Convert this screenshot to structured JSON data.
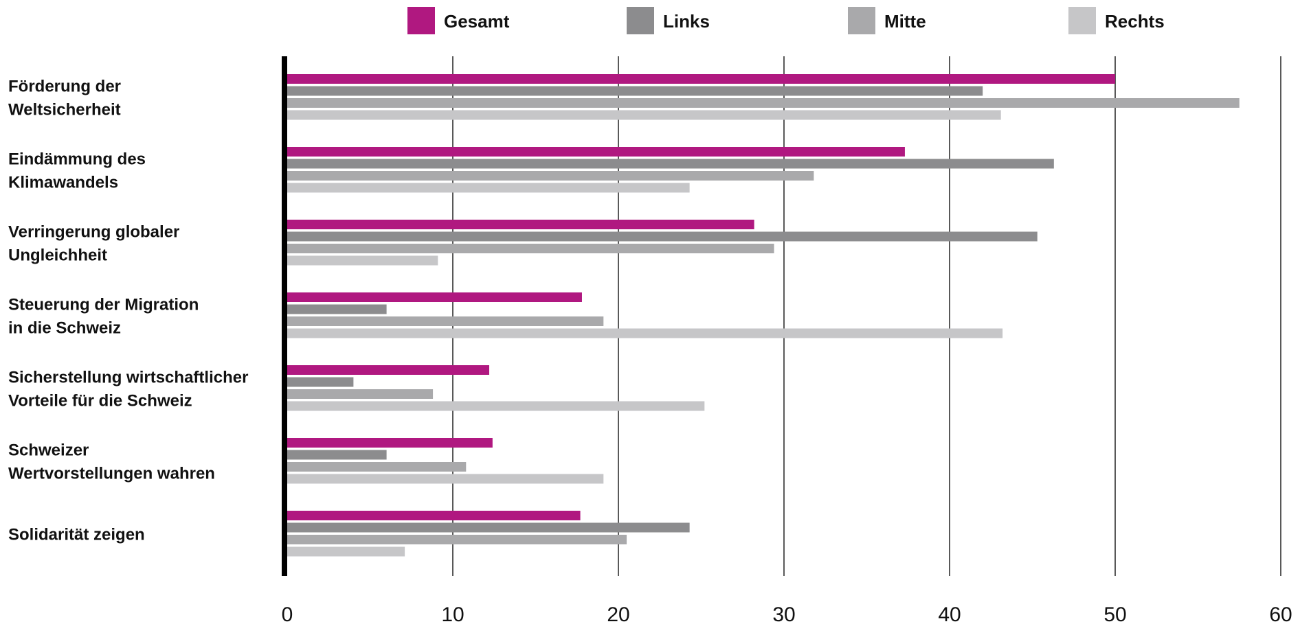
{
  "chart_data": {
    "type": "bar",
    "orientation": "horizontal",
    "categories": [
      [
        "Förderung der",
        "Weltsicherheit"
      ],
      [
        "Eindämmung des",
        "Klimawandels"
      ],
      [
        "Verringerung globaler",
        "Ungleichheit"
      ],
      [
        "Steuerung der Migration",
        "in die Schweiz"
      ],
      [
        "Sicherstellung wirtschaftlicher",
        "Vorteile für die Schweiz"
      ],
      [
        "Schweizer",
        "Wertvorstellungen wahren"
      ],
      [
        "Solidarität zeigen"
      ]
    ],
    "series": [
      {
        "name": "Gesamt",
        "color": "#b01880",
        "values": [
          50.0,
          37.3,
          28.2,
          17.8,
          12.2,
          12.4,
          17.7
        ]
      },
      {
        "name": "Links",
        "color": "#8c8c8e",
        "values": [
          42.0,
          46.3,
          45.3,
          6.0,
          4.0,
          6.0,
          24.3
        ]
      },
      {
        "name": "Mitte",
        "color": "#a9a9ab",
        "values": [
          57.5,
          31.8,
          29.4,
          19.1,
          8.8,
          10.8,
          20.5
        ]
      },
      {
        "name": "Rechts",
        "color": "#c6c6c8",
        "values": [
          43.1,
          24.3,
          9.1,
          43.2,
          25.2,
          19.1,
          7.1
        ]
      }
    ],
    "xlim": [
      0,
      60
    ],
    "xticks": [
      0,
      10,
      20,
      30,
      40,
      50,
      60
    ],
    "grid": true,
    "legend_position": "top"
  }
}
